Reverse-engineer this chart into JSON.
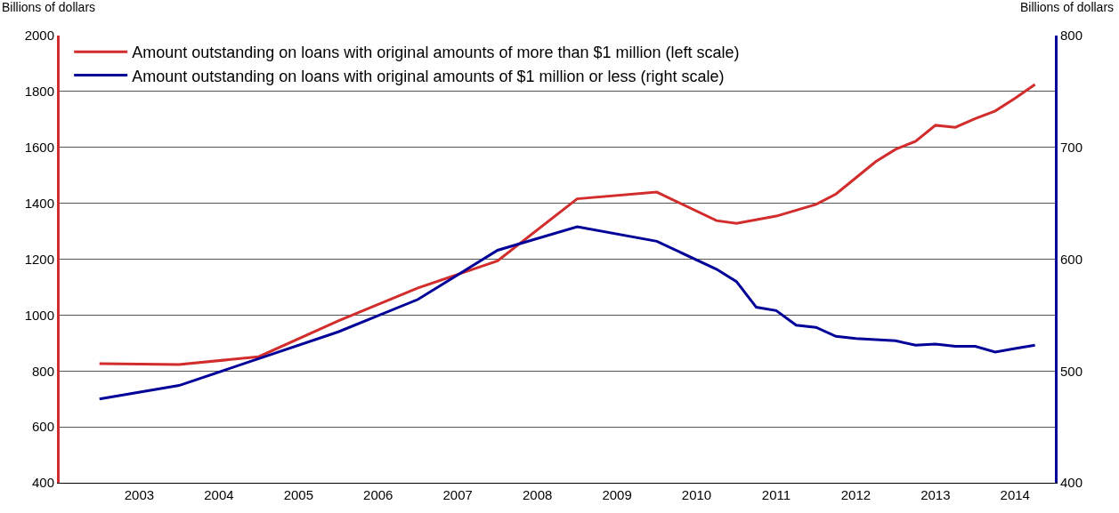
{
  "chart_data": {
    "type": "line",
    "ylabel": "Billions of dollars",
    "y2label": "Billions of dollars",
    "xlim": [
      2002.5,
      2015.0
    ],
    "xticks": [
      {
        "value": 2003.5,
        "label": "2003"
      },
      {
        "value": 2004.5,
        "label": "2004"
      },
      {
        "value": 2005.5,
        "label": "2005"
      },
      {
        "value": 2006.5,
        "label": "2006"
      },
      {
        "value": 2007.5,
        "label": "2007"
      },
      {
        "value": 2008.5,
        "label": "2008"
      },
      {
        "value": 2009.5,
        "label": "2009"
      },
      {
        "value": 2010.5,
        "label": "2010"
      },
      {
        "value": 2011.5,
        "label": "2011"
      },
      {
        "value": 2012.5,
        "label": "2012"
      },
      {
        "value": 2013.5,
        "label": "2013"
      },
      {
        "value": 2014.5,
        "label": "2014"
      }
    ],
    "ylim": [
      400,
      2000
    ],
    "yticks": [
      400,
      600,
      800,
      1000,
      1200,
      1400,
      1600,
      1800,
      2000
    ],
    "y2lim": [
      400,
      800
    ],
    "y2ticks": [
      400,
      500,
      600,
      700,
      800
    ],
    "grid": "y",
    "legend": "top left",
    "line_style": "solid",
    "series": [
      {
        "name": "Amount outstanding on loans with original amounts of more than $1 million (left scale)",
        "color": "#d22c2c",
        "x": [
          2003,
          2004,
          2005,
          2006,
          2007,
          2008,
          2009,
          2010,
          2010.75,
          2011,
          2011.5,
          2012,
          2012.25,
          2012.5,
          2012.75,
          2013,
          2013.25,
          2013.5,
          2013.75,
          2014,
          2014.25,
          2014.5,
          2014.75
        ],
        "values": [
          826,
          823,
          851,
          979,
          1097,
          1194,
          1416,
          1440,
          1338,
          1328,
          1354,
          1396,
          1433,
          1491,
          1549,
          1593,
          1622,
          1679,
          1672,
          1703,
          1730,
          1776,
          1825
        ]
      },
      {
        "name": "Amount outstanding on loans with original amounts of $1 million or less (right scale)",
        "color": "#000099",
        "axis": "y2",
        "x": [
          2003,
          2004,
          2005,
          2006,
          2007,
          2008,
          2009,
          2010,
          2010.75,
          2011,
          2011.25,
          2011.5,
          2011.75,
          2012,
          2012.25,
          2012.5,
          2012.75,
          2013,
          2013.25,
          2013.5,
          2013.75,
          2014,
          2014.25,
          2014.5,
          2014.75
        ],
        "values": [
          475,
          487,
          511,
          535,
          564,
          608,
          629,
          616,
          591,
          580,
          557,
          554,
          541,
          539,
          531,
          529,
          528,
          527,
          523,
          524,
          522,
          522,
          517,
          520,
          523
        ]
      }
    ]
  }
}
